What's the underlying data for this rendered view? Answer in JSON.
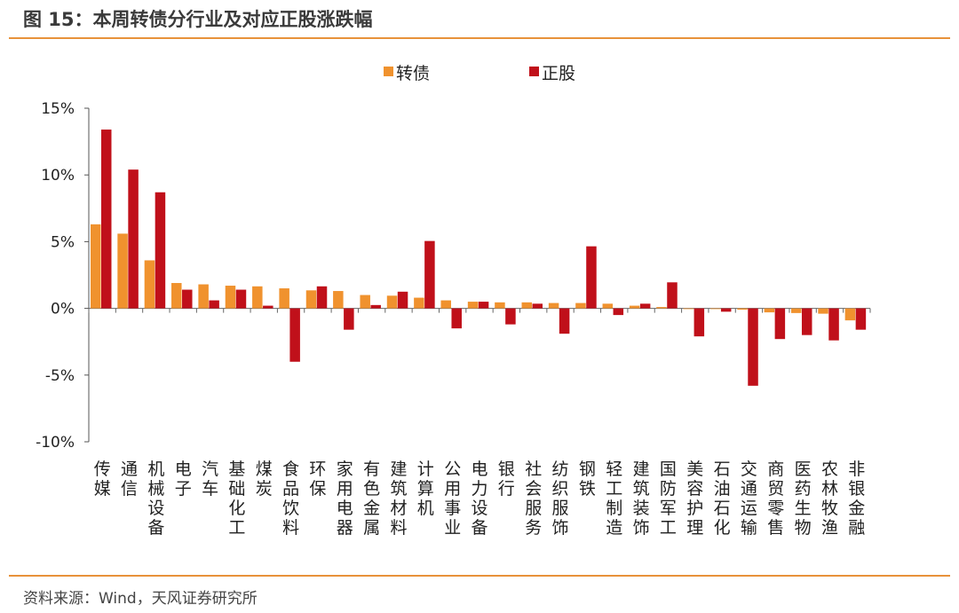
{
  "title": "图 15：本周转债分行业及对应正股涨跌幅",
  "source": "资料来源：Wind，天风证券研究所",
  "colors": {
    "series1": "#f0922e",
    "series2": "#c0101a",
    "rule": "#e8923a"
  },
  "chart_data": {
    "type": "bar",
    "title": "",
    "xlabel": "",
    "ylabel": "",
    "ylim": [
      -10,
      15
    ],
    "yticks": [
      15,
      10,
      5,
      0,
      -5,
      -10
    ],
    "ytick_labels": [
      "15%",
      "10%",
      "5%",
      "0%",
      "-5%",
      "-10%"
    ],
    "legend_position": "top-center",
    "categories": [
      "传媒",
      "通信",
      "机械设备",
      "电子",
      "汽车",
      "基础化工",
      "煤炭",
      "食品饮料",
      "环保",
      "家用电器",
      "有色金属",
      "建筑材料",
      "计算机",
      "公用事业",
      "电力设备",
      "银行",
      "社会服务",
      "纺织服饰",
      "钢铁",
      "轻工制造",
      "建筑装饰",
      "国防军工",
      "美容护理",
      "石油石化",
      "交通运输",
      "商贸零售",
      "医药生物",
      "农林牧渔",
      "非银金融"
    ],
    "series": [
      {
        "name": "转债",
        "values": [
          6.3,
          5.6,
          3.6,
          1.9,
          1.8,
          1.7,
          1.65,
          1.5,
          1.35,
          1.3,
          1.0,
          0.95,
          0.8,
          0.6,
          0.5,
          0.45,
          0.45,
          0.4,
          0.4,
          0.35,
          0.2,
          0.1,
          -0.05,
          -0.05,
          -0.1,
          -0.3,
          -0.35,
          -0.4,
          -0.9
        ]
      },
      {
        "name": "正股",
        "values": [
          13.4,
          10.4,
          8.7,
          1.4,
          0.6,
          1.4,
          0.2,
          -4.0,
          1.65,
          -1.6,
          0.25,
          1.25,
          5.05,
          -1.5,
          0.5,
          -1.2,
          0.35,
          -1.9,
          4.65,
          -0.5,
          0.35,
          1.95,
          -2.1,
          -0.25,
          -5.8,
          -2.3,
          -2.0,
          -2.4,
          -1.6
        ]
      }
    ]
  }
}
